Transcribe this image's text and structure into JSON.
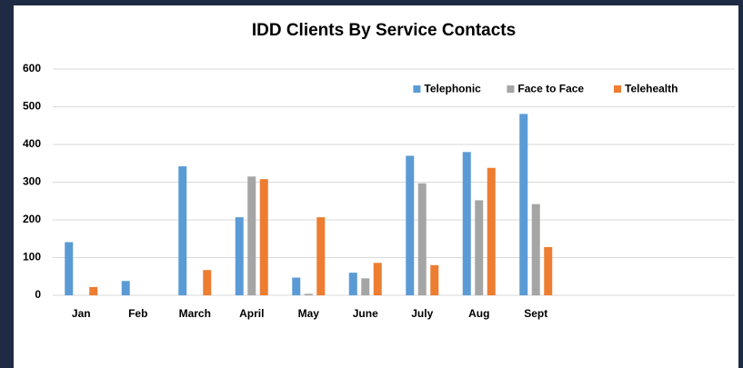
{
  "chart_data": {
    "type": "bar",
    "title": "IDD Clients By Service Contacts",
    "categories": [
      "Jan",
      "Feb",
      "March",
      "April",
      "May",
      "June",
      "July",
      "Aug",
      "Sept",
      null,
      null,
      null
    ],
    "series": [
      {
        "name": "Telephonic",
        "color": "#5b9bd5",
        "values": [
          141,
          38,
          342,
          207,
          47,
          60,
          370,
          380,
          481,
          null,
          null,
          null
        ]
      },
      {
        "name": "Face to Face",
        "color": "#a5a5a5",
        "values": [
          0,
          0,
          0,
          315,
          4,
          45,
          297,
          252,
          242,
          null,
          null,
          null
        ]
      },
      {
        "name": "Telehealth",
        "color": "#ed7d31",
        "values": [
          22,
          0,
          67,
          308,
          207,
          86,
          80,
          338,
          128,
          null,
          null,
          null
        ]
      }
    ],
    "ylim": [
      0,
      600
    ],
    "yticks": [
      0,
      100,
      200,
      300,
      400,
      500,
      600
    ],
    "grid": true,
    "legend": "top-right"
  }
}
